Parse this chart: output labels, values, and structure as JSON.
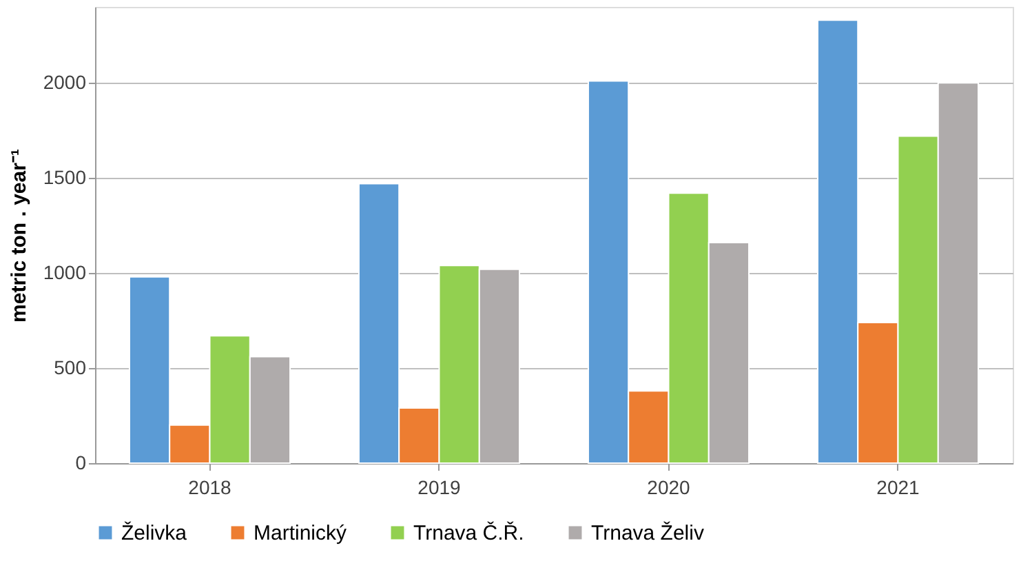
{
  "chart_data": {
    "type": "bar",
    "ylabel": "metric ton . year⁻¹",
    "categories": [
      "2018",
      "2019",
      "2020",
      "2021"
    ],
    "series": [
      {
        "name": "Želivka",
        "color": "#5b9bd5",
        "values": [
          980,
          1470,
          2010,
          2330
        ]
      },
      {
        "name": "Martinický",
        "color": "#ed7d31",
        "values": [
          200,
          290,
          380,
          740
        ]
      },
      {
        "name": "Trnava Č.Ř.",
        "color": "#92d050",
        "values": [
          670,
          1040,
          1420,
          1720
        ]
      },
      {
        "name": "Trnava Želiv",
        "color": "#afabab",
        "values": [
          560,
          1020,
          1160,
          2000
        ]
      }
    ],
    "ylim": [
      0,
      2400
    ],
    "yticks": [
      0,
      500,
      1000,
      1500,
      2000
    ],
    "grid": "y",
    "legend": "bottom"
  }
}
